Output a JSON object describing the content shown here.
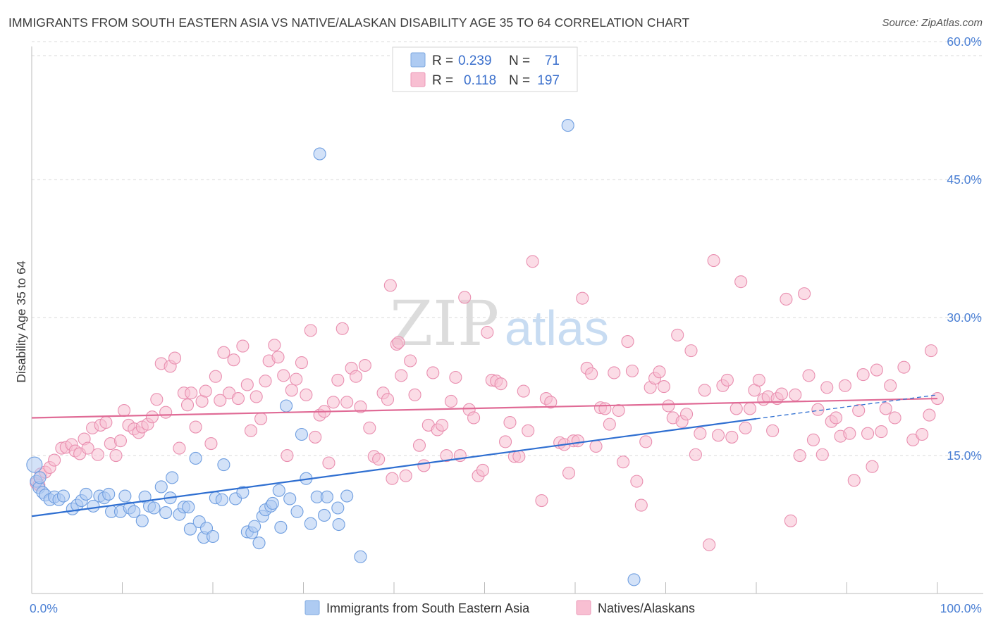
{
  "title": "IMMIGRANTS FROM SOUTH EASTERN ASIA VS NATIVE/ALASKAN DISABILITY AGE 35 TO 64 CORRELATION CHART",
  "source": "Source: ZipAtlas.com",
  "watermark": {
    "zip": "ZIP",
    "atlas": "atlas"
  },
  "legend": {
    "r_label": "R =",
    "n_label": "N =",
    "rows": [
      {
        "r": "0.239",
        "n": "71",
        "color": "#aecbf2",
        "stroke": "#7ea8e0"
      },
      {
        "r": "0.118",
        "n": "197",
        "color": "#f8bfd2",
        "stroke": "#ec9ab8"
      }
    ]
  },
  "colors": {
    "blue": "#4a86d8",
    "blue_line": "#2f6fd1",
    "pink": "#e87aa0",
    "pink_line": "#e06b96",
    "axis_text": "#4a7fd4",
    "grid": "#d9d9d9"
  },
  "chart_data": {
    "type": "scatter",
    "title": "IMMIGRANTS FROM SOUTH EASTERN ASIA VS NATIVE/ALASKAN DISABILITY AGE 35 TO 64 CORRELATION CHART",
    "xlabel": "",
    "ylabel": "Disability Age 35 to 64",
    "xlim": [
      0,
      100
    ],
    "ylim": [
      0,
      63
    ],
    "x_ticks": [
      "0.0%",
      "100.0%"
    ],
    "y_ticks": [
      {
        "value": 15,
        "label": "15.0%"
      },
      {
        "value": 30,
        "label": "30.0%"
      },
      {
        "value": 45,
        "label": "45.0%"
      },
      {
        "value": 60,
        "label": "60.0%"
      }
    ],
    "grid": true,
    "legend_position": "bottom",
    "series": [
      {
        "name": "Immigrants from South Eastern Asia",
        "color": "#4a86d8",
        "r": 0.239,
        "n": 71,
        "trend": {
          "x": [
            0,
            80
          ],
          "y": [
            8.4,
            19.0
          ]
        },
        "trend_dashed": {
          "x": [
            80,
            100
          ],
          "y": [
            19.0,
            21.6
          ]
        },
        "points": [
          [
            0.3,
            14.0
          ],
          [
            0.5,
            12.2
          ],
          [
            0.8,
            11.5
          ],
          [
            1.2,
            11.0
          ],
          [
            1.5,
            10.7
          ],
          [
            2.0,
            10.2
          ],
          [
            2.5,
            10.5
          ],
          [
            3.0,
            10.2
          ],
          [
            3.5,
            10.6
          ],
          [
            4.5,
            9.2
          ],
          [
            5.0,
            9.6
          ],
          [
            5.5,
            10.1
          ],
          [
            6.0,
            10.8
          ],
          [
            6.8,
            9.5
          ],
          [
            7.5,
            10.6
          ],
          [
            8.0,
            10.4
          ],
          [
            8.5,
            10.8
          ],
          [
            8.8,
            8.9
          ],
          [
            9.8,
            8.9
          ],
          [
            10.3,
            10.6
          ],
          [
            10.8,
            9.3
          ],
          [
            11.3,
            8.9
          ],
          [
            12.2,
            7.9
          ],
          [
            12.5,
            10.5
          ],
          [
            13.0,
            9.5
          ],
          [
            13.5,
            9.3
          ],
          [
            14.3,
            11.6
          ],
          [
            14.8,
            8.8
          ],
          [
            15.3,
            10.4
          ],
          [
            15.5,
            12.6
          ],
          [
            16.3,
            8.6
          ],
          [
            16.8,
            9.4
          ],
          [
            17.3,
            9.4
          ],
          [
            17.5,
            7.0
          ],
          [
            18.1,
            14.7
          ],
          [
            18.5,
            7.8
          ],
          [
            19.0,
            6.1
          ],
          [
            19.3,
            7.1
          ],
          [
            20.0,
            6.2
          ],
          [
            20.3,
            10.4
          ],
          [
            21.0,
            10.2
          ],
          [
            21.2,
            14.0
          ],
          [
            22.5,
            10.3
          ],
          [
            23.3,
            11.0
          ],
          [
            23.8,
            6.7
          ],
          [
            24.3,
            6.6
          ],
          [
            24.6,
            7.3
          ],
          [
            25.1,
            5.5
          ],
          [
            25.5,
            8.4
          ],
          [
            25.8,
            9.1
          ],
          [
            26.4,
            9.5
          ],
          [
            26.6,
            9.8
          ],
          [
            27.3,
            11.2
          ],
          [
            27.5,
            7.2
          ],
          [
            28.1,
            20.4
          ],
          [
            28.5,
            10.3
          ],
          [
            29.3,
            8.9
          ],
          [
            29.8,
            17.3
          ],
          [
            30.3,
            12.5
          ],
          [
            30.8,
            7.6
          ],
          [
            31.5,
            10.5
          ],
          [
            31.8,
            47.8
          ],
          [
            32.3,
            8.5
          ],
          [
            32.6,
            10.5
          ],
          [
            33.8,
            9.3
          ],
          [
            33.9,
            7.5
          ],
          [
            34.8,
            10.6
          ],
          [
            36.3,
            4.0
          ],
          [
            59.2,
            50.9
          ],
          [
            66.5,
            1.5
          ],
          [
            0.9,
            12.6
          ]
        ]
      },
      {
        "name": "Natives/Alaskans",
        "color": "#e87aa0",
        "r": 0.118,
        "n": 197,
        "trend": {
          "x": [
            0,
            100
          ],
          "y": [
            19.1,
            21.2
          ]
        },
        "points": [
          [
            0.5,
            12.0
          ],
          [
            0.8,
            11.8
          ],
          [
            1.0,
            13.0
          ],
          [
            1.5,
            13.2
          ],
          [
            2.0,
            13.7
          ],
          [
            2.5,
            14.5
          ],
          [
            3.3,
            15.8
          ],
          [
            3.8,
            15.9
          ],
          [
            4.4,
            16.2
          ],
          [
            4.8,
            15.5
          ],
          [
            5.3,
            15.2
          ],
          [
            5.8,
            16.8
          ],
          [
            6.2,
            15.8
          ],
          [
            6.7,
            18.0
          ],
          [
            7.3,
            15.1
          ],
          [
            7.6,
            18.3
          ],
          [
            8.2,
            18.6
          ],
          [
            8.7,
            16.3
          ],
          [
            9.3,
            15.0
          ],
          [
            9.8,
            16.6
          ],
          [
            10.2,
            19.9
          ],
          [
            10.7,
            18.3
          ],
          [
            11.3,
            17.9
          ],
          [
            11.8,
            17.5
          ],
          [
            12.2,
            18.1
          ],
          [
            12.8,
            18.4
          ],
          [
            13.3,
            19.2
          ],
          [
            13.8,
            21.1
          ],
          [
            14.3,
            25.0
          ],
          [
            14.8,
            19.7
          ],
          [
            15.3,
            24.7
          ],
          [
            15.8,
            25.6
          ],
          [
            16.3,
            15.8
          ],
          [
            16.8,
            21.8
          ],
          [
            17.2,
            20.5
          ],
          [
            17.6,
            21.8
          ],
          [
            18.1,
            18.1
          ],
          [
            18.8,
            20.9
          ],
          [
            19.2,
            22.0
          ],
          [
            19.8,
            16.3
          ],
          [
            20.3,
            23.6
          ],
          [
            20.8,
            21.0
          ],
          [
            21.2,
            26.2
          ],
          [
            21.8,
            21.8
          ],
          [
            22.3,
            25.4
          ],
          [
            22.8,
            21.2
          ],
          [
            23.3,
            26.9
          ],
          [
            23.8,
            22.7
          ],
          [
            24.2,
            17.7
          ],
          [
            24.8,
            21.4
          ],
          [
            25.3,
            19.0
          ],
          [
            25.8,
            23.1
          ],
          [
            26.2,
            25.3
          ],
          [
            26.8,
            27.0
          ],
          [
            27.2,
            25.7
          ],
          [
            27.8,
            23.7
          ],
          [
            28.2,
            15.0
          ],
          [
            28.7,
            22.1
          ],
          [
            29.2,
            23.3
          ],
          [
            29.8,
            25.1
          ],
          [
            30.3,
            21.6
          ],
          [
            30.8,
            28.6
          ],
          [
            31.3,
            17.0
          ],
          [
            31.8,
            19.4
          ],
          [
            32.3,
            19.8
          ],
          [
            32.8,
            14.2
          ],
          [
            33.3,
            20.8
          ],
          [
            33.8,
            23.2
          ],
          [
            34.3,
            28.8
          ],
          [
            34.8,
            20.8
          ],
          [
            35.3,
            24.5
          ],
          [
            35.8,
            23.6
          ],
          [
            36.3,
            20.3
          ],
          [
            36.8,
            24.8
          ],
          [
            37.3,
            18.0
          ],
          [
            37.8,
            14.9
          ],
          [
            38.3,
            14.6
          ],
          [
            38.8,
            21.8
          ],
          [
            39.3,
            21.1
          ],
          [
            39.8,
            12.5
          ],
          [
            40.3,
            27.1
          ],
          [
            40.8,
            23.7
          ],
          [
            41.3,
            12.8
          ],
          [
            41.8,
            25.3
          ],
          [
            42.3,
            21.6
          ],
          [
            42.8,
            16.1
          ],
          [
            43.3,
            13.9
          ],
          [
            43.8,
            18.3
          ],
          [
            44.3,
            24.0
          ],
          [
            44.8,
            17.8
          ],
          [
            45.3,
            18.3
          ],
          [
            45.8,
            15.0
          ],
          [
            46.3,
            20.9
          ],
          [
            46.8,
            23.5
          ],
          [
            47.3,
            15.0
          ],
          [
            47.8,
            32.2
          ],
          [
            48.3,
            20.0
          ],
          [
            48.8,
            19.1
          ],
          [
            49.3,
            12.8
          ],
          [
            49.8,
            13.4
          ],
          [
            50.3,
            28.4
          ],
          [
            50.8,
            23.2
          ],
          [
            51.3,
            23.1
          ],
          [
            51.8,
            22.8
          ],
          [
            52.3,
            16.5
          ],
          [
            52.8,
            18.6
          ],
          [
            53.3,
            14.9
          ],
          [
            53.8,
            14.9
          ],
          [
            54.3,
            22.0
          ],
          [
            54.8,
            17.7
          ],
          [
            55.3,
            36.1
          ],
          [
            56.3,
            10.1
          ],
          [
            56.8,
            21.2
          ],
          [
            57.3,
            20.8
          ],
          [
            58.3,
            16.4
          ],
          [
            58.8,
            16.2
          ],
          [
            59.3,
            13.1
          ],
          [
            59.8,
            16.6
          ],
          [
            60.3,
            16.6
          ],
          [
            60.8,
            32.1
          ],
          [
            61.3,
            24.5
          ],
          [
            61.8,
            23.9
          ],
          [
            62.3,
            16.0
          ],
          [
            62.8,
            20.2
          ],
          [
            63.3,
            20.1
          ],
          [
            63.8,
            18.4
          ],
          [
            64.3,
            24.0
          ],
          [
            64.8,
            19.9
          ],
          [
            65.3,
            14.3
          ],
          [
            65.8,
            27.4
          ],
          [
            66.3,
            24.2
          ],
          [
            66.8,
            12.2
          ],
          [
            67.3,
            9.6
          ],
          [
            67.8,
            16.5
          ],
          [
            68.3,
            22.4
          ],
          [
            68.8,
            23.4
          ],
          [
            69.3,
            24.1
          ],
          [
            69.8,
            22.5
          ],
          [
            70.3,
            20.4
          ],
          [
            70.8,
            19.1
          ],
          [
            71.3,
            28.1
          ],
          [
            71.8,
            18.7
          ],
          [
            72.3,
            19.5
          ],
          [
            72.8,
            26.4
          ],
          [
            73.3,
            15.1
          ],
          [
            73.8,
            17.4
          ],
          [
            74.3,
            22.1
          ],
          [
            74.8,
            5.3
          ],
          [
            75.3,
            36.2
          ],
          [
            75.8,
            17.2
          ],
          [
            76.3,
            22.6
          ],
          [
            76.8,
            23.2
          ],
          [
            77.3,
            17.0
          ],
          [
            77.8,
            20.1
          ],
          [
            78.3,
            33.9
          ],
          [
            78.8,
            18.0
          ],
          [
            79.3,
            20.1
          ],
          [
            79.8,
            22.1
          ],
          [
            80.3,
            23.2
          ],
          [
            80.8,
            21.1
          ],
          [
            81.3,
            21.4
          ],
          [
            81.8,
            17.7
          ],
          [
            82.3,
            21.2
          ],
          [
            82.8,
            21.7
          ],
          [
            83.3,
            32.0
          ],
          [
            83.8,
            7.9
          ],
          [
            84.3,
            21.6
          ],
          [
            84.8,
            15.0
          ],
          [
            85.3,
            32.6
          ],
          [
            85.8,
            23.7
          ],
          [
            86.3,
            16.7
          ],
          [
            86.8,
            20.0
          ],
          [
            87.3,
            15.1
          ],
          [
            87.8,
            22.4
          ],
          [
            88.3,
            18.7
          ],
          [
            88.8,
            19.1
          ],
          [
            89.3,
            17.1
          ],
          [
            89.8,
            22.6
          ],
          [
            90.3,
            17.4
          ],
          [
            90.8,
            12.3
          ],
          [
            91.3,
            19.9
          ],
          [
            91.8,
            23.8
          ],
          [
            92.3,
            17.4
          ],
          [
            92.8,
            13.8
          ],
          [
            93.3,
            24.3
          ],
          [
            93.8,
            17.6
          ],
          [
            94.3,
            20.1
          ],
          [
            94.8,
            22.6
          ],
          [
            95.3,
            19.1
          ],
          [
            96.3,
            24.6
          ],
          [
            97.3,
            16.7
          ],
          [
            98.3,
            17.3
          ],
          [
            99.1,
            19.4
          ],
          [
            99.3,
            26.4
          ],
          [
            100.0,
            21.2
          ],
          [
            40.5,
            27.3
          ],
          [
            39.6,
            33.5
          ]
        ]
      }
    ]
  },
  "bottom_legend": [
    {
      "label": "Immigrants from South Eastern Asia",
      "color": "#aecbf2",
      "stroke": "#7ea8e0"
    },
    {
      "label": "Natives/Alaskans",
      "color": "#f8bfd2",
      "stroke": "#ec9ab8"
    }
  ]
}
